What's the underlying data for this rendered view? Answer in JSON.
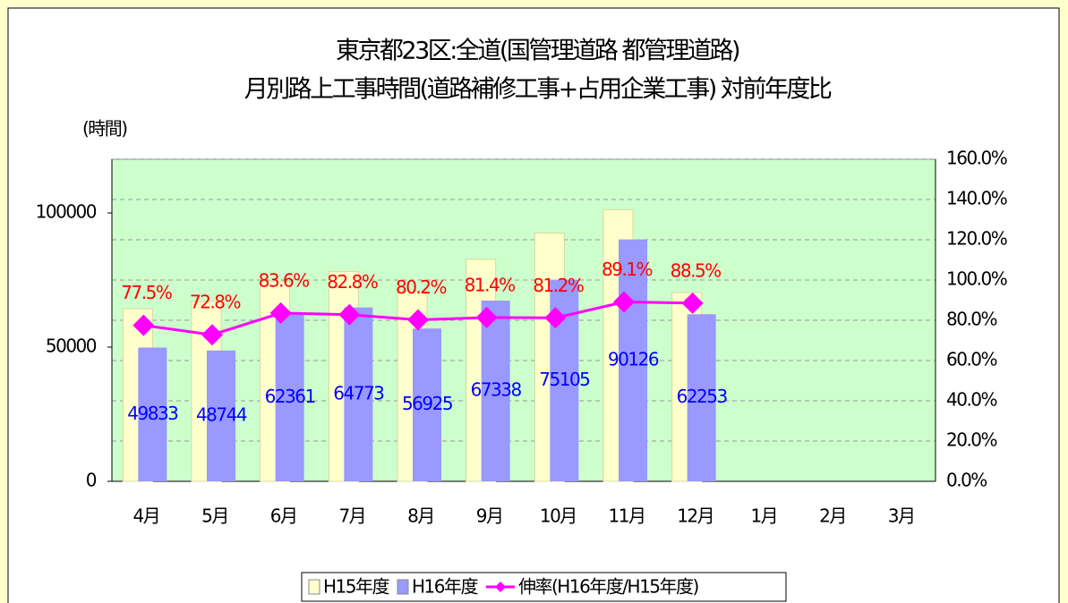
{
  "chart_data": {
    "type": "bar",
    "title": [
      "東京都23区:全道(国管理道路 都管理道路)",
      "月別路上工事時間(道路補修工事+占用企業工事) 対前年度比"
    ],
    "y_label": "(時間)",
    "categories": [
      "4月",
      "5月",
      "6月",
      "7月",
      "8月",
      "9月",
      "10月",
      "11月",
      "12月",
      "1月",
      "2月",
      "3月"
    ],
    "series": [
      {
        "name": "H15年度",
        "color": "#ffffcc",
        "type": "bar",
        "values": [
          64300,
          67000,
          74600,
          78200,
          71000,
          82700,
          92500,
          101200,
          70300,
          null,
          null,
          null
        ]
      },
      {
        "name": "H16年度",
        "color": "#9999ff",
        "type": "bar",
        "values": [
          49833,
          48744,
          62361,
          64773,
          56925,
          67338,
          75105,
          90126,
          62253,
          null,
          null,
          null
        ]
      },
      {
        "name": "伸率(H16年度/H15年度)",
        "color": "#ff00ff",
        "type": "line",
        "axis": "y2",
        "values": [
          77.5,
          72.8,
          83.6,
          82.8,
          80.2,
          81.4,
          81.2,
          89.1,
          88.5,
          null,
          null,
          null
        ],
        "value_labels": [
          "77.5%",
          "72.8%",
          "83.6%",
          "82.8%",
          "80.2%",
          "81.4%",
          "81.2%",
          "89.1%",
          "88.5%",
          null,
          null,
          null
        ]
      }
    ],
    "ylim": [
      0,
      120000
    ],
    "yticks": [
      0,
      50000,
      100000
    ],
    "y2lim": [
      0,
      160
    ],
    "y2ticks": [
      {
        "value": 0,
        "label": "0.0%"
      },
      {
        "value": 20,
        "label": "20.0%"
      },
      {
        "value": 40,
        "label": "40.0%"
      },
      {
        "value": 60,
        "label": "60.0%"
      },
      {
        "value": 80,
        "label": "80.0%"
      },
      {
        "value": 100,
        "label": "100.0%"
      },
      {
        "value": 120,
        "label": "120.0%"
      },
      {
        "value": 140,
        "label": "140.0%"
      },
      {
        "value": 160,
        "label": "160.0%"
      }
    ],
    "grid": true,
    "legend": "bottom",
    "plot_background": "#ccffcc"
  }
}
